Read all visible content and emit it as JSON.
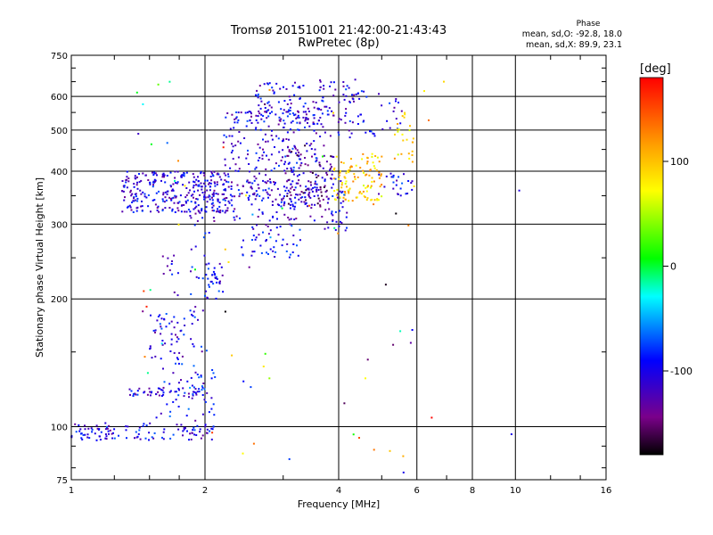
{
  "header": {
    "title_line1": "Tromsø 20151001 21:42:00-21:43:43",
    "title_line2": "RwPretec (8p)"
  },
  "phase_stats": {
    "title": "Phase",
    "o_line": "mean, sd,O: -92.8, 18.0",
    "x_line": "mean, sd,X:  89.9, 23.1"
  },
  "colorbar": {
    "unit_label": "[deg]",
    "range": [
      -180,
      180
    ],
    "ticks": [
      100,
      0,
      -100
    ],
    "colormap": "rainbow (black-purple-blue-cyan-green-yellow-orange-red)"
  },
  "chart_data": {
    "type": "scatter",
    "xlabel": "Frequency [MHz]",
    "ylabel": "Stationary phase Virtual Height [km]",
    "xscale": "log",
    "yscale": "log",
    "xlim": [
      1,
      16
    ],
    "ylim": [
      75,
      750
    ],
    "xticks": [
      1,
      2,
      4,
      6,
      8,
      10,
      16
    ],
    "yticks": [
      75,
      100,
      200,
      300,
      400,
      500,
      600,
      750
    ],
    "grid": true,
    "color_encodes": "phase [deg]",
    "clusters": [
      {
        "x_range": [
          1.0,
          1.25
        ],
        "y_range": [
          92,
          102
        ],
        "phase": -105,
        "count": 50
      },
      {
        "x_range": [
          1.25,
          2.1
        ],
        "y_range": [
          93,
          102
        ],
        "phase": -100,
        "count": 60
      },
      {
        "x_range": [
          1.35,
          1.95
        ],
        "y_range": [
          118,
          124
        ],
        "phase": -105,
        "count": 45
      },
      {
        "x_range": [
          1.5,
          1.8
        ],
        "y_range": [
          140,
          185
        ],
        "phase": -100,
        "count": 50
      },
      {
        "x_range": [
          1.55,
          2.15
        ],
        "y_range": [
          105,
          140
        ],
        "phase": -95,
        "count": 40
      },
      {
        "x_range": [
          1.6,
          1.75
        ],
        "y_range": [
          200,
          260
        ],
        "phase": -100,
        "count": 12
      },
      {
        "x_range": [
          1.85,
          2.05
        ],
        "y_range": [
          95,
          300
        ],
        "phase": -100,
        "count": 50
      },
      {
        "x_range": [
          2.0,
          2.2
        ],
        "y_range": [
          200,
          245
        ],
        "phase": -100,
        "count": 30
      },
      {
        "x_range": [
          1.3,
          2.3
        ],
        "y_range": [
          320,
          400
        ],
        "phase": -105,
        "count": 300
      },
      {
        "x_range": [
          1.85,
          3.7
        ],
        "y_range": [
          305,
          380
        ],
        "phase": -110,
        "count": 120
      },
      {
        "x_range": [
          2.2,
          3.6
        ],
        "y_range": [
          330,
          560
        ],
        "phase": -105,
        "count": 260
      },
      {
        "x_range": [
          2.6,
          3.8
        ],
        "y_range": [
          520,
          650
        ],
        "phase": -105,
        "count": 90
      },
      {
        "x_range": [
          3.0,
          3.9
        ],
        "y_range": [
          330,
          460
        ],
        "phase": -135,
        "count": 90
      },
      {
        "x_range": [
          2.4,
          3.3
        ],
        "y_range": [
          250,
          300
        ],
        "phase": -100,
        "count": 50
      },
      {
        "x_range": [
          3.7,
          4.2
        ],
        "y_range": [
          280,
          400
        ],
        "phase": -100,
        "count": 40
      },
      {
        "x_range": [
          3.9,
          5.0
        ],
        "y_range": [
          340,
          440
        ],
        "phase": 95,
        "count": 110
      },
      {
        "x_range": [
          3.6,
          4.4
        ],
        "y_range": [
          480,
          660
        ],
        "phase": -105,
        "count": 50
      },
      {
        "x_range": [
          4.2,
          5.6
        ],
        "y_range": [
          480,
          620
        ],
        "phase": -100,
        "count": 40
      },
      {
        "x_range": [
          4.9,
          5.9
        ],
        "y_range": [
          350,
          400
        ],
        "phase": -100,
        "count": 25
      },
      {
        "x_range": [
          5.3,
          5.9
        ],
        "y_range": [
          420,
          560
        ],
        "phase": 90,
        "count": 25
      },
      {
        "x_range": [
          1.4,
          6.5
        ],
        "y_range": [
          78,
          680
        ],
        "phase": 0,
        "count": 70
      }
    ],
    "isolated_points": [
      {
        "x": 1.45,
        "y": 575,
        "phase": -30
      },
      {
        "x": 10.2,
        "y": 360,
        "phase": -105
      },
      {
        "x": 9.8,
        "y": 96,
        "phase": -100
      },
      {
        "x": 6.9,
        "y": 650,
        "phase": 90
      },
      {
        "x": 5.6,
        "y": 78,
        "phase": -100
      }
    ]
  }
}
